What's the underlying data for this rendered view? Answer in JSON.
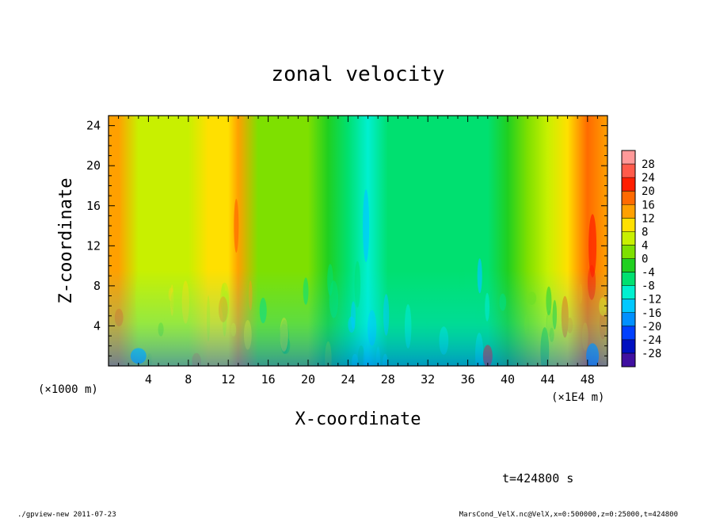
{
  "chart_data": {
    "type": "heatmap",
    "title": "zonal velocity",
    "xlabel": "X-coordinate",
    "ylabel": "Z-coordinate",
    "x_scale_label": "(×1E4 m)",
    "y_scale_label": "(×1000 m)",
    "x_ticks": [
      "4",
      "8",
      "12",
      "16",
      "20",
      "24",
      "28",
      "32",
      "36",
      "40",
      "44",
      "48"
    ],
    "x_tick_values": [
      4,
      8,
      12,
      16,
      20,
      24,
      28,
      32,
      36,
      40,
      44,
      48
    ],
    "y_ticks": [
      "4",
      "8",
      "12",
      "16",
      "20",
      "24"
    ],
    "y_tick_values": [
      4,
      8,
      12,
      16,
      20,
      24
    ],
    "xlim": [
      0,
      50
    ],
    "ylim": [
      0,
      25
    ],
    "colorbar": {
      "labels": [
        "28",
        "24",
        "20",
        "16",
        "12",
        "8",
        "4",
        "0",
        "-4",
        "-8",
        "-12",
        "-16",
        "-20",
        "-24",
        "-28"
      ],
      "levels": [
        28,
        24,
        20,
        16,
        12,
        8,
        4,
        0,
        -4,
        -8,
        -12,
        -16,
        -20,
        -24,
        -28
      ],
      "colors_top_to_bottom": [
        "#ff9999",
        "#ff5a4a",
        "#ff1e00",
        "#ff6a00",
        "#ffa000",
        "#ffe000",
        "#c8f000",
        "#7ee000",
        "#20d020",
        "#00e070",
        "#00f0d0",
        "#00c8ff",
        "#0090ff",
        "#0040ff",
        "#0010c0",
        "#4010a0"
      ]
    },
    "x_profile_speed": {
      "x": [
        0,
        1,
        3,
        5,
        8,
        10,
        12,
        13,
        15,
        18,
        20,
        22,
        24,
        26,
        28,
        30,
        32,
        34,
        36,
        38,
        40,
        42,
        44,
        46,
        48,
        50
      ],
      "value": [
        14,
        12,
        6,
        6,
        6,
        8,
        10,
        12,
        2,
        2,
        0,
        -3,
        -8,
        -10,
        -8,
        -7,
        -5,
        -6,
        -8,
        -5,
        -1,
        2,
        5,
        10,
        16,
        14
      ]
    }
  },
  "time_label": "t=424800 s",
  "footer_left": "./gpview-new  2011-07-23",
  "footer_right": "MarsCond_VelX.nc@VelX,x=0:500000,z=0:25000,t=424800"
}
